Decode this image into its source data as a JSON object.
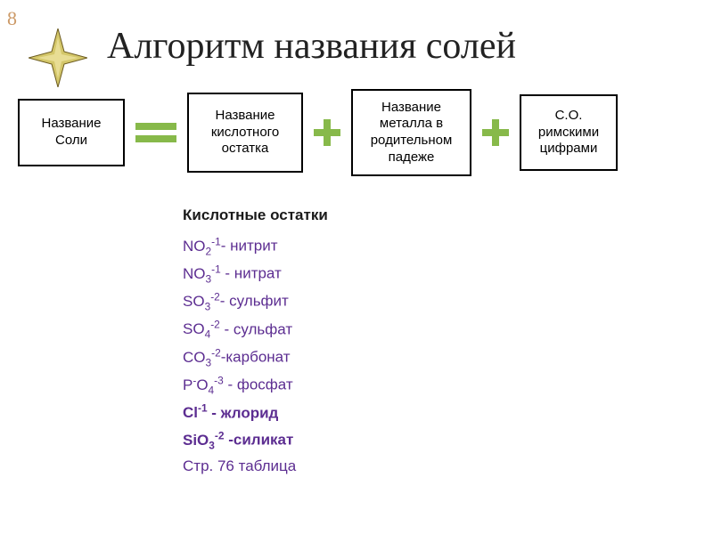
{
  "slideNumber": "8",
  "title": "Алгоритм названия солей",
  "flow": {
    "box1": "Название Соли",
    "box2": "Название кислотного остатка",
    "box3": "Название металла в родительном падеже",
    "box4": "С.О. римскими цифрами"
  },
  "listHeading": "Кислотные остатки",
  "items": [
    {
      "formula_html": "NO<sub>2</sub><sup>-1</sup>",
      "sep": "- ",
      "name": "нитрит",
      "bold": false
    },
    {
      "formula_html": "NO<sub>3</sub><sup>-1</sup>",
      "sep": " - ",
      "name": "нитрат",
      "bold": false
    },
    {
      "formula_html": "SO<sub>3</sub><sup>-2</sup>",
      "sep": "- ",
      "name": "сульфит",
      "bold": false
    },
    {
      "formula_html": "SO<sub>4</sub><sup>-2</sup>",
      "sep": " - ",
      "name": "сульфат",
      "bold": false
    },
    {
      "formula_html": "CO<sub>3</sub><sup>-2</sup>",
      "sep": "-",
      "name": "карбонат",
      "bold": false
    },
    {
      "formula_html": "P<sup>-</sup>O<sub>4</sub><sup>-3</sup>",
      "sep": " - ",
      "name": "фосфат",
      "bold": false
    },
    {
      "formula_html": "Cl<sup>-1</sup>",
      "sep": "    - ",
      "name": "жлорид",
      "bold": true
    },
    {
      "formula_html": "SiO<sub>3</sub><sup>-2</sup>",
      "sep": " -",
      "name": "силикат",
      "bold": true
    }
  ],
  "footerRef": "Стр. 76 таблица",
  "colors": {
    "accentGreen": "#87b94a",
    "chemPurple": "#5c2d91",
    "slideNumColor": "#cc9966",
    "starFill": "#d4c76a",
    "starStroke": "#6b5a1f"
  }
}
